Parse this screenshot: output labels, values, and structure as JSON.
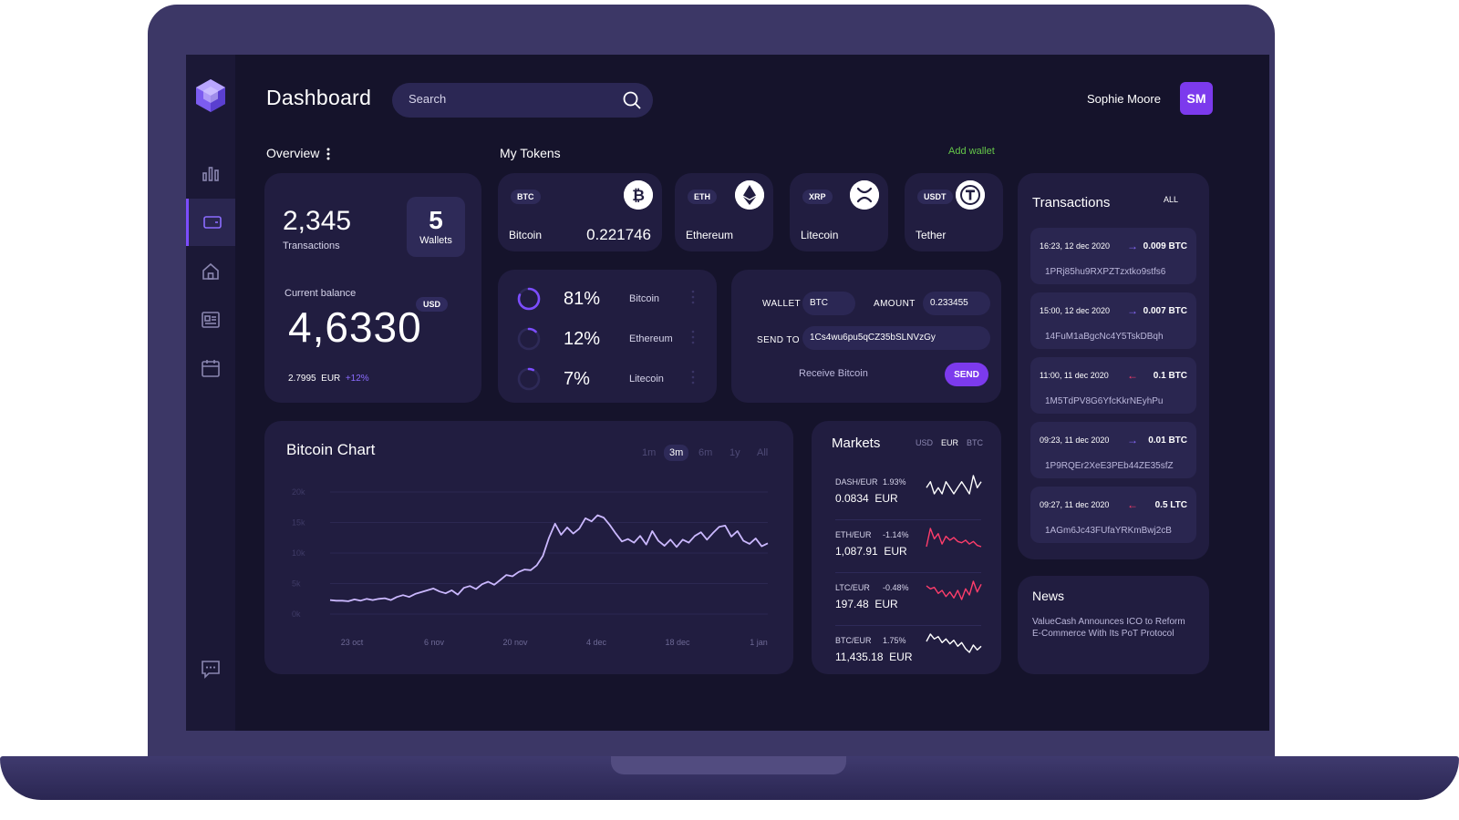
{
  "colors": {
    "accent": "#7c3aed",
    "positive": "#65c74a",
    "negative": "#ff3d6b",
    "card": "#211d40",
    "background": "#15132b"
  },
  "sidebar": {
    "logo_icon": "cube-logo-icon",
    "items": [
      {
        "icon": "bar-chart-icon",
        "active": false
      },
      {
        "icon": "wallet-icon",
        "active": true
      },
      {
        "icon": "home-icon",
        "active": false
      },
      {
        "icon": "newspaper-icon",
        "active": false
      },
      {
        "icon": "calendar-icon",
        "active": false
      }
    ],
    "bottom_icon": "chat-icon"
  },
  "header": {
    "title": "Dashboard",
    "search_placeholder": "Search",
    "user_name": "Sophie Moore",
    "user_initials": "SM"
  },
  "overview": {
    "label": "Overview",
    "transactions_value": "2,345",
    "transactions_label": "Transactions",
    "wallets_value": "5",
    "wallets_label": "Wallets",
    "balance_label": "Current balance",
    "balance_currency": "USD",
    "balance_value": "4,6330",
    "fx_value": "2.7995",
    "fx_currency": "EUR",
    "fx_change": "+12%"
  },
  "tokens": {
    "label": "My Tokens",
    "add_wallet": "Add wallet",
    "items": [
      {
        "symbol": "BTC",
        "name": "Bitcoin",
        "value": "0.221746",
        "icon": "bitcoin-icon"
      },
      {
        "symbol": "ETH",
        "name": "Ethereum",
        "value": "",
        "icon": "ethereum-icon"
      },
      {
        "symbol": "XRP",
        "name": "Litecoin",
        "value": "",
        "icon": "xrp-icon"
      },
      {
        "symbol": "USDT",
        "name": "Tether",
        "value": "",
        "icon": "tether-icon"
      }
    ]
  },
  "allocation": [
    {
      "percent": "81%",
      "name": "Bitcoin",
      "fraction": 0.81
    },
    {
      "percent": "12%",
      "name": "Ethereum",
      "fraction": 0.12
    },
    {
      "percent": "7%",
      "name": "Litecoin",
      "fraction": 0.07
    }
  ],
  "send": {
    "wallet_label": "WALLET",
    "wallet_value": "BTC",
    "amount_label": "AMOUNT",
    "amount_value": "0.233455",
    "send_to_label": "SEND TO",
    "send_to_value": "1Cs4wu6pu5qCZ35bSLNVzGy",
    "receive_label": "Receive Bitcoin",
    "send_button": "SEND"
  },
  "bitcoin_chart": {
    "title": "Bitcoin Chart",
    "ranges": [
      "1m",
      "3m",
      "6m",
      "1y",
      "All"
    ],
    "active_range": "3m"
  },
  "chart_data": {
    "type": "line",
    "title": "Bitcoin Chart",
    "xlabel": "",
    "ylabel": "",
    "ylim": [
      0,
      20
    ],
    "y_ticks": [
      "0k",
      "5k",
      "10k",
      "15k",
      "20k"
    ],
    "x_ticks": [
      "23 oct",
      "6 nov",
      "20 nov",
      "4 dec",
      "18 dec",
      "1 jan"
    ],
    "grid": true,
    "series": [
      {
        "values": [
          2.3,
          2.2,
          2.2,
          2.1,
          2.4,
          2.2,
          2.5,
          2.3,
          2.5,
          2.6,
          2.3,
          2.8,
          3.1,
          2.8,
          3.3,
          3.6,
          3.9,
          4.2,
          3.7,
          3.4,
          3.9,
          3.2,
          4.3,
          4.6,
          4.1,
          4.9,
          5.3,
          4.8,
          5.6,
          6.4,
          6.2,
          6.9,
          7.3,
          7.2,
          8.0,
          9.5,
          12.5,
          14.8,
          13.0,
          14.2,
          13.2,
          14.0,
          15.7,
          15.2,
          16.2,
          15.8,
          14.6,
          13.2,
          11.9,
          12.3,
          11.7,
          12.8,
          11.4,
          13.6,
          12.0,
          11.2,
          12.2,
          11.0,
          12.2,
          11.7,
          12.8,
          13.4,
          12.2,
          13.3,
          14.3,
          14.5,
          12.7,
          13.6,
          12.0,
          11.5,
          12.4,
          11.1,
          11.6
        ]
      }
    ]
  },
  "markets": {
    "title": "Markets",
    "tabs": [
      "USD",
      "EUR",
      "BTC"
    ],
    "active_tab": "EUR",
    "rows": [
      {
        "pair": "DASH/EUR",
        "change": "1.93%",
        "price": "0.0834",
        "currency": "EUR",
        "trend": [
          5,
          6,
          4,
          5,
          4,
          6,
          5,
          4,
          5,
          6,
          5,
          4,
          7,
          5,
          6
        ],
        "color": "#ffffff"
      },
      {
        "pair": "ETH/EUR",
        "change": "-1.14%",
        "price": "1,087.91",
        "currency": "EUR",
        "trend": [
          4,
          18,
          10,
          14,
          6,
          12,
          9,
          11,
          8,
          7,
          9,
          6,
          8,
          5,
          4
        ],
        "color": "#ff3d6b"
      },
      {
        "pair": "LTC/EUR",
        "change": "-0.48%",
        "price": "197.48",
        "currency": "EUR",
        "trend": [
          12,
          10,
          11,
          7,
          9,
          5,
          8,
          4,
          9,
          3,
          10,
          6,
          15,
          8,
          13
        ],
        "color": "#ff3d6b"
      },
      {
        "pair": "BTC/EUR",
        "change": "1.75%",
        "price": "11,435.18",
        "currency": "EUR",
        "trend": [
          10,
          16,
          12,
          14,
          9,
          12,
          8,
          11,
          6,
          9,
          4,
          1,
          7,
          3,
          6
        ],
        "color": "#ffffff"
      }
    ]
  },
  "transactions": {
    "title": "Transactions",
    "filter": "ALL",
    "items": [
      {
        "time": "16:23, 12 dec 2020",
        "direction": "out",
        "amount": "0.009 BTC",
        "hash": "1PRj85hu9RXPZTzxtko9stfs6"
      },
      {
        "time": "15:00, 12 dec 2020",
        "direction": "out",
        "amount": "0.007 BTC",
        "hash": "14FuM1aBgcNc4Y5TskDBqh"
      },
      {
        "time": "11:00, 11 dec 2020",
        "direction": "in",
        "amount": "0.1 BTC",
        "hash": "1M5TdPV8G6YfcKkrNEyhPu"
      },
      {
        "time": "09:23, 11 dec 2020",
        "direction": "out",
        "amount": "0.01 BTC",
        "hash": "1P9RQEr2XeE3PEb44ZE35sfZ"
      },
      {
        "time": "09:27, 11 dec 2020",
        "direction": "in",
        "amount": "0.5 LTC",
        "hash": "1AGm6Jc43FUfaYRKmBwj2cB"
      }
    ]
  },
  "news": {
    "title": "News",
    "text": "ValueCash Announces ICO to Reform E-Commerce With Its PoT Protocol"
  }
}
